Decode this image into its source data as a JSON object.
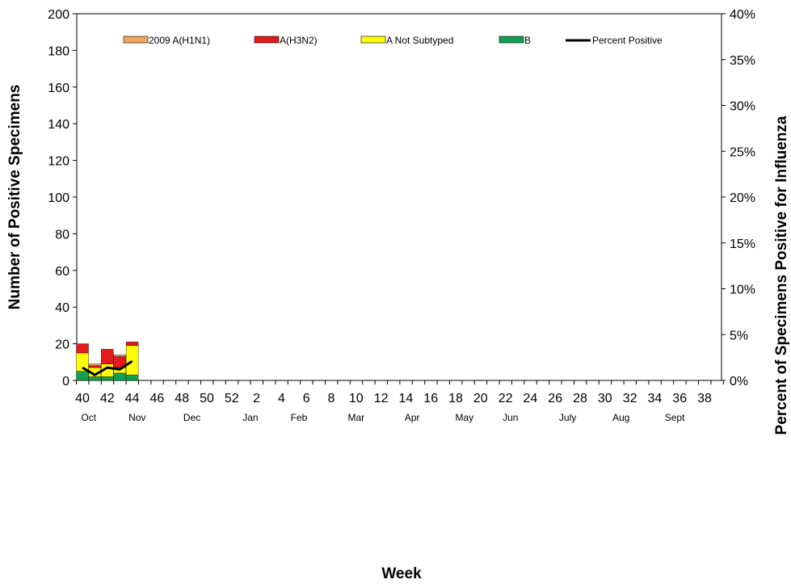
{
  "chart_data": {
    "type": "bar",
    "subtype": "stacked bar with line overlay",
    "xlabel": "Week",
    "ylabel": "Number of Positive Specimens",
    "y2label": "Percent of Specimens Positive for Influenza",
    "ylim": [
      0,
      200
    ],
    "y2lim": [
      0,
      40
    ],
    "y_ticks": [
      0,
      20,
      40,
      60,
      80,
      100,
      120,
      140,
      160,
      180,
      200
    ],
    "y2_ticks": [
      "0%",
      "5%",
      "10%",
      "15%",
      "20%",
      "25%",
      "30%",
      "35%",
      "40%"
    ],
    "x_tick_labels": [
      "40",
      "42",
      "44",
      "46",
      "48",
      "50",
      "52",
      "2",
      "4",
      "6",
      "8",
      "10",
      "12",
      "14",
      "16",
      "18",
      "20",
      "22",
      "24",
      "26",
      "28",
      "30",
      "32",
      "34",
      "36",
      "38"
    ],
    "months": [
      "Oct",
      "Nov",
      "Dec",
      "Jan",
      "Feb",
      "Mar",
      "Apr",
      "May",
      "Jun",
      "July",
      "Aug",
      "Sept"
    ],
    "grid": false,
    "legend_position": "top",
    "weeks": [
      "40",
      "41",
      "42",
      "43",
      "44"
    ],
    "series": [
      {
        "name": "2009 A(H1N1)",
        "color": "#F4A460",
        "values": [
          0,
          1,
          0,
          1,
          0
        ]
      },
      {
        "name": "A(H3N2)",
        "color": "#E41A1C",
        "values": [
          5,
          1,
          8,
          6,
          2
        ]
      },
      {
        "name": "A Not Subtyped",
        "color": "#FFFF00",
        "values": [
          10,
          5,
          7,
          3,
          16
        ]
      },
      {
        "name": "B",
        "color": "#12A050",
        "values": [
          5,
          2,
          2,
          4,
          3
        ]
      }
    ],
    "line_series": {
      "name": "Percent Positive",
      "color": "#000000",
      "values": [
        1.4,
        0.6,
        1.4,
        1.2,
        2.1
      ]
    }
  }
}
